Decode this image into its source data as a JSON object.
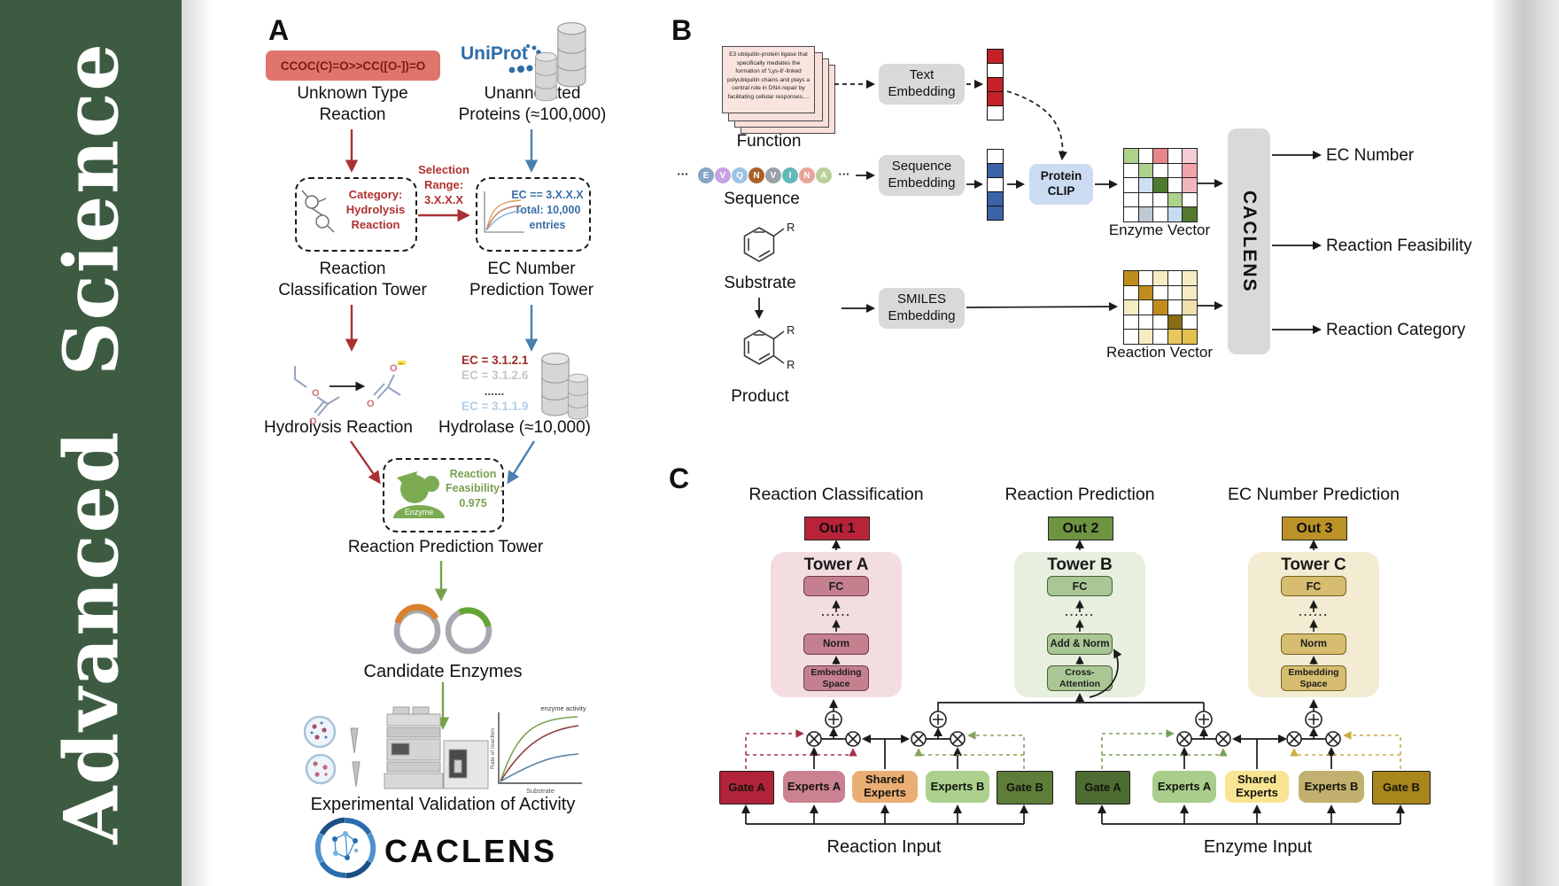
{
  "sidebar": {
    "journal_vertical_text": "Advanced Science"
  },
  "panelA": {
    "label": "A",
    "smiles_reaction": "CCOC(C)=O>>CC([O-])=O",
    "unknown_reaction_lines": [
      "Unknown Type",
      "Reaction"
    ],
    "uniprot_logo_text": "UniProt",
    "unannotated_lines": [
      "Unannotated",
      "Proteins (≈100,000)"
    ],
    "classification_box_lines": [
      "Category:",
      "Hydrolysis",
      "Reaction"
    ],
    "selection_lines": [
      "Selection",
      "Range:",
      "3.X.X.X"
    ],
    "ec_box_lines": [
      "EC == 3.X.X.X",
      "Total: 10,000",
      "entries"
    ],
    "tower_classification_lines": [
      "Reaction",
      "Classification Tower"
    ],
    "tower_ec_lines": [
      "EC Number",
      "Prediction Tower"
    ],
    "hydrolysis_label": "Hydrolysis Reaction",
    "ec_results": [
      {
        "text": "EC = 3.1.2.1",
        "color": "#9f2a24"
      },
      {
        "text": "EC = 3.1.2.6",
        "color": "#c6c6c6"
      },
      {
        "text": "......",
        "color": "#4a4a4a"
      },
      {
        "text": "EC = 3.1.1.9",
        "color": "#b2cee6"
      }
    ],
    "hydrolase_label": "Hydrolase (≈10,000)",
    "enzyme_badge": "Enzyme",
    "feasibility_lines": [
      "Reaction",
      "Feasibility:",
      "0.975"
    ],
    "tower_prediction": "Reaction Prediction Tower",
    "candidate_label": "Candidate Enzymes",
    "activity_plot": {
      "curve_label": "enzyme activity",
      "ylabel": "Rate of reaction",
      "xlabel": "Substrate"
    },
    "validation_label": "Experimental Validation of Activity",
    "brand": "CACLENS"
  },
  "panelB": {
    "label": "B",
    "function_card_text": "E3 ubiquitin-protein ligase that specifically mediates the formation of 'Lys-6'-linked polyubiquitin chains and plays a central role in DNA repair by facilitating cellular responses....",
    "function_label": "Function",
    "text_embedding_lines": [
      "Text",
      "Embedding"
    ],
    "ellipsis": "···",
    "sequence_letters": [
      {
        "t": "E",
        "c": "#88a6c6"
      },
      {
        "t": "V",
        "c": "#c6a3e2"
      },
      {
        "t": "Q",
        "c": "#9cc3e5"
      },
      {
        "t": "N",
        "c": "#a9612a"
      },
      {
        "t": "V",
        "c": "#9aa1a9"
      },
      {
        "t": "I",
        "c": "#63b8ba"
      },
      {
        "t": "N",
        "c": "#e8a49a"
      },
      {
        "t": "A",
        "c": "#b9cf9a"
      }
    ],
    "sequence_label": "Sequence",
    "sequence_embedding_lines": [
      "Sequence",
      "Embedding"
    ],
    "protein_clip_lines": [
      "Protein",
      "CLIP"
    ],
    "text_vector_cells": [
      "#c32127",
      "#ffffff",
      "#c32127",
      "#c32127",
      "#ffffff"
    ],
    "sequence_vector_cells": [
      "#ffffff",
      "#3c63a8",
      "#ffffff",
      "#3c63a8",
      "#3c63a8"
    ],
    "enzyme_vector_label": "Enzyme Vector",
    "enzyme_matrix": [
      [
        "#aed18b",
        "#ffffff",
        "#e7868b",
        "#ffffff",
        "#f6cdd4"
      ],
      [
        "#ffffff",
        "#aed18b",
        "#ffffff",
        "#ffffff",
        "#f2a3ab"
      ],
      [
        "#ffffff",
        "#cfdff2",
        "#4d7a2d",
        "#ffffff",
        "#f2b7bd"
      ],
      [
        "#ffffff",
        "#ffffff",
        "#ffffff",
        "#aed18b",
        "#ffffff"
      ],
      [
        "#ffffff",
        "#bfc9d4",
        "#ffffff",
        "#c6dcf0",
        "#55782f"
      ]
    ],
    "substrate_label": "Substrate",
    "product_label": "Product",
    "substituent": "R",
    "smiles_embedding_lines": [
      "SMILES",
      "Embedding"
    ],
    "reaction_vector_label": "Reaction Vector",
    "reaction_matrix": [
      [
        "#c08c1d",
        "#ffffff",
        "#f6ecc4",
        "#ffffff",
        "#f6ecc4"
      ],
      [
        "#ffffff",
        "#c08c1d",
        "#ffffff",
        "#ffffff",
        "#f6ecc4"
      ],
      [
        "#f6ecc4",
        "#ffffff",
        "#c08c1d",
        "#ffffff",
        "#efdfae"
      ],
      [
        "#ffffff",
        "#ffffff",
        "#ffffff",
        "#8a6c14",
        "#ffffff"
      ],
      [
        "#ffffff",
        "#f6ecc4",
        "#ffffff",
        "#e9c75e",
        "#e3bf4e"
      ]
    ],
    "caclens_vertical": "CACLENS",
    "outputs": [
      "EC Number",
      "Reaction Feasibility",
      "Reaction Category"
    ]
  },
  "panelC": {
    "label": "C",
    "headers": [
      "Reaction Classification",
      "Reaction Prediction",
      "EC Number Prediction"
    ],
    "towers": [
      {
        "out": "Out 1",
        "name": "Tower A",
        "fc": "FC",
        "dots": "......",
        "norm": "Norm",
        "base_lines": [
          "Embedding",
          "Space"
        ]
      },
      {
        "out": "Out 2",
        "name": "Tower B",
        "fc": "FC",
        "dots": "......",
        "norm": "Add & Norm",
        "base_lines": [
          "Cross-",
          "Attention"
        ]
      },
      {
        "out": "Out 3",
        "name": "Tower C",
        "fc": "FC",
        "dots": "......",
        "norm": "Norm",
        "base_lines": [
          "Embedding",
          "Space"
        ]
      }
    ],
    "groups": [
      {
        "gate_a": "Gate A",
        "experts_a": "Experts A",
        "shared_lines": [
          "Shared",
          "Experts"
        ],
        "experts_b": "Experts B",
        "gate_b": "Gate B",
        "input": "Reaction Input"
      },
      {
        "gate_a": "Gate A",
        "experts_a": "Experts A",
        "shared_lines": [
          "Shared",
          "Experts"
        ],
        "experts_b": "Experts B",
        "gate_b": "Gate B",
        "input": "Enzyme Input"
      }
    ]
  }
}
